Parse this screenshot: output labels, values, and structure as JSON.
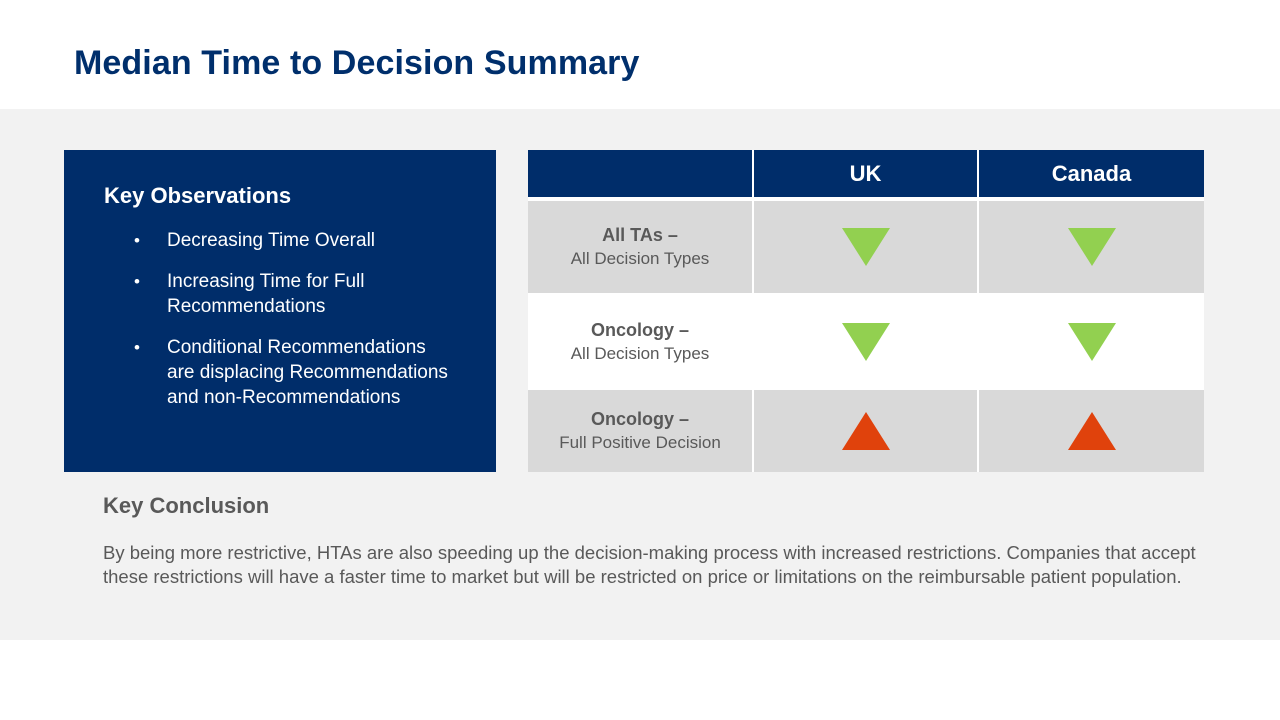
{
  "slide": {
    "title": "Median Time to Decision Summary"
  },
  "observations": {
    "heading": "Key Observations",
    "bullet_glyph": "•",
    "items": [
      "Decreasing Time Overall",
      "Increasing Time for Full Recommendations",
      "Conditional Recommendations are displacing Recommendations and non-Recommendations"
    ]
  },
  "table": {
    "columns": [
      "",
      "UK",
      "Canada"
    ],
    "rows": [
      {
        "label_bold": "All TAs –",
        "label_sub": "All Decision Types",
        "uk": "down",
        "canada": "down"
      },
      {
        "label_bold": "Oncology –",
        "label_sub": "All Decision Types",
        "uk": "down",
        "canada": "down"
      },
      {
        "label_bold": "Oncology –",
        "label_sub": "Full Positive Decision",
        "uk": "up",
        "canada": "up"
      }
    ],
    "indicator_icons": {
      "down": "down-triangle-icon",
      "up": "up-triangle-icon"
    },
    "colors": {
      "down": "#92d050",
      "up": "#e0420c",
      "header": "#002d6a",
      "shaded": "#d9d9d9"
    }
  },
  "conclusion": {
    "heading": "Key Conclusion",
    "body": "By being more restrictive, HTAs are also speeding up the decision-making process with increased restrictions. Companies that accept these restrictions will have a faster time to market but will be restricted on price or limitations on the reimbursable patient population."
  }
}
